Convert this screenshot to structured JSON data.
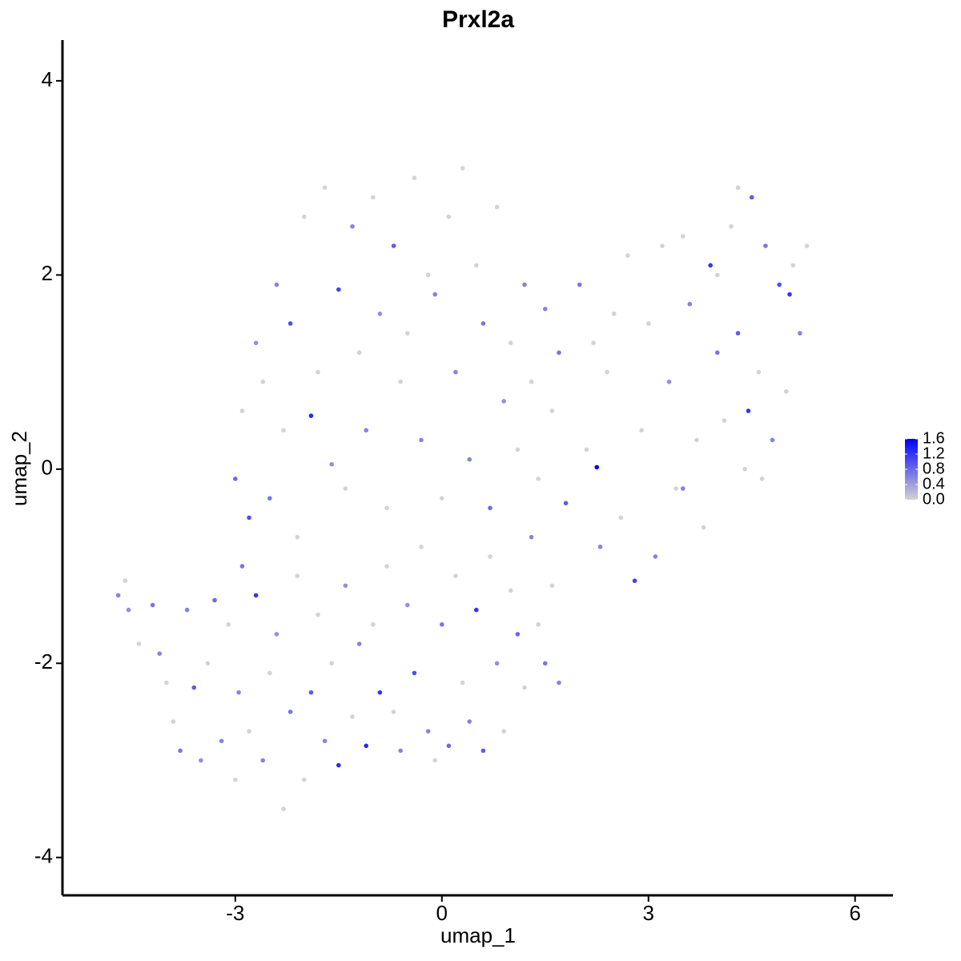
{
  "chart_data": {
    "type": "scatter",
    "title": "Prxl2a",
    "x_label": "umap_1",
    "y_label": "umap_2",
    "xlim": [
      -5.51,
      6.55
    ],
    "ylim": [
      -4.39,
      4.42
    ],
    "xticks": [
      -3,
      0,
      3,
      6
    ],
    "yticks": [
      -4,
      -2,
      0,
      2,
      4
    ],
    "grid": false,
    "low_color": "#d3d3d3",
    "high_color": "#0000ff",
    "colorlim": [
      0,
      1.6
    ],
    "colorticks": [
      {
        "value": 0,
        "label": "0.0"
      },
      {
        "value": 0.4,
        "label": "0.4"
      },
      {
        "value": 0.8,
        "label": "0.8"
      },
      {
        "value": 1.2,
        "label": "1.2"
      },
      {
        "value": 1.6,
        "label": "1.6"
      }
    ],
    "x": [
      -4.7,
      -4.6,
      -4.55,
      -4.4,
      -4.2,
      -4.1,
      -4.0,
      -3.9,
      -3.8,
      -3.7,
      -3.6,
      -3.5,
      -3.4,
      -3.3,
      -3.2,
      -3.1,
      -3.0,
      -2.95,
      -2.9,
      -2.8,
      -2.7,
      -2.6,
      -2.5,
      -2.4,
      -2.3,
      -2.2,
      -2.1,
      -2.0,
      -1.9,
      -1.8,
      -1.7,
      -1.6,
      -1.5,
      -1.4,
      -1.3,
      -1.2,
      -1.1,
      -1.0,
      -0.9,
      -0.8,
      -0.7,
      -0.6,
      -0.5,
      -0.4,
      -0.3,
      -0.2,
      -0.1,
      0.0,
      0.1,
      0.2,
      0.3,
      0.4,
      0.5,
      0.6,
      0.7,
      0.8,
      0.9,
      1.0,
      1.1,
      1.2,
      1.3,
      1.4,
      1.5,
      1.6,
      1.7,
      -3.0,
      -2.9,
      -2.8,
      -2.7,
      -2.6,
      -2.5,
      -2.4,
      -2.3,
      -2.2,
      -2.1,
      -2.0,
      -1.9,
      -1.8,
      -1.7,
      -1.6,
      -1.5,
      -1.4,
      -1.3,
      -1.2,
      -1.1,
      -1.0,
      -0.9,
      -0.8,
      -0.7,
      -0.6,
      -0.5,
      -0.4,
      -0.3,
      -0.2,
      -0.1,
      0.0,
      0.1,
      0.2,
      0.3,
      0.4,
      0.5,
      0.6,
      0.7,
      0.8,
      0.9,
      1.0,
      1.1,
      1.2,
      1.3,
      1.4,
      1.5,
      1.6,
      1.7,
      1.8,
      2.0,
      2.1,
      2.2,
      2.25,
      2.3,
      2.4,
      2.5,
      2.6,
      2.7,
      2.8,
      2.9,
      3.0,
      3.1,
      3.2,
      3.3,
      3.4,
      3.5,
      3.6,
      3.7,
      3.8,
      3.9,
      4.0,
      4.1,
      4.2,
      4.3,
      4.4,
      4.5,
      4.6,
      4.7,
      4.8,
      4.9,
      5.0,
      5.1,
      5.2,
      5.3,
      4.45,
      4.65,
      3.5,
      4.0,
      4.3,
      5.05
    ],
    "y": [
      -1.3,
      -1.15,
      -1.45,
      -1.8,
      -1.4,
      -1.9,
      -2.2,
      -2.6,
      -2.9,
      -1.45,
      -2.25,
      -3.0,
      -2.0,
      -1.35,
      -2.8,
      -1.6,
      -3.2,
      -2.3,
      -1.0,
      -2.7,
      -1.3,
      -3.0,
      -2.1,
      -1.7,
      -3.5,
      -2.5,
      -1.1,
      -3.2,
      -2.3,
      -1.5,
      -2.8,
      -2.0,
      -3.05,
      -1.2,
      -2.55,
      -1.8,
      -2.85,
      -1.6,
      -2.3,
      -1.0,
      -2.5,
      -2.9,
      -1.4,
      -2.1,
      -0.8,
      -2.7,
      -3.0,
      -1.6,
      -2.85,
      -1.1,
      -2.2,
      -2.6,
      -1.45,
      -2.9,
      -0.9,
      -2.0,
      -2.7,
      -1.25,
      -1.7,
      -2.25,
      -0.7,
      -1.6,
      -2.0,
      -1.2,
      -2.2,
      -0.1,
      0.6,
      -0.5,
      1.3,
      0.9,
      -0.3,
      1.9,
      0.4,
      1.5,
      -0.7,
      2.6,
      0.55,
      1.0,
      2.9,
      0.05,
      1.85,
      -0.2,
      2.5,
      1.2,
      0.4,
      2.8,
      1.6,
      -0.4,
      2.3,
      0.9,
      1.4,
      3.0,
      0.3,
      2.0,
      1.8,
      -0.3,
      2.6,
      1.0,
      3.1,
      0.1,
      2.1,
      1.5,
      -0.4,
      2.7,
      0.7,
      1.3,
      0.2,
      1.9,
      0.9,
      -0.1,
      1.65,
      0.6,
      1.2,
      -0.35,
      1.9,
      0.2,
      1.3,
      0.02,
      -0.8,
      1.0,
      1.6,
      -0.5,
      2.2,
      -1.15,
      0.4,
      1.5,
      -0.9,
      2.3,
      0.9,
      -0.2,
      2.4,
      1.7,
      0.3,
      -0.6,
      2.1,
      1.2,
      0.5,
      2.5,
      1.4,
      0.0,
      2.8,
      1.0,
      2.3,
      0.3,
      1.9,
      0.8,
      2.1,
      1.4,
      2.3,
      0.6,
      -0.1,
      -0.2,
      2.0,
      2.9,
      1.8
    ],
    "values": [
      0.6,
      0,
      0.5,
      0,
      0.7,
      0.6,
      0,
      0,
      0.7,
      0.6,
      0.9,
      0.5,
      0,
      0.8,
      0.6,
      0,
      0,
      0.6,
      0.7,
      0,
      1.2,
      0.6,
      0,
      0.5,
      0,
      0.7,
      0,
      0,
      0.9,
      0,
      0.6,
      0,
      1.3,
      0.5,
      0,
      0.6,
      1.3,
      0,
      1.2,
      0,
      0,
      0.6,
      0.5,
      1.0,
      0,
      0.6,
      0,
      0.7,
      0.8,
      0,
      0,
      0.6,
      1.2,
      0.9,
      0,
      0.5,
      0,
      0,
      0.8,
      0,
      0.6,
      0,
      0.7,
      0,
      0.6,
      0.8,
      0,
      1.0,
      0.5,
      0,
      0.7,
      0.6,
      0,
      1.0,
      0,
      0,
      1.3,
      0,
      0,
      0.5,
      1.1,
      0,
      0.6,
      0,
      0.6,
      0,
      0.5,
      0,
      0.9,
      0,
      0,
      0,
      0.6,
      0,
      0.6,
      0,
      0,
      0.6,
      0,
      0.6,
      0,
      0.7,
      0.8,
      0,
      0.5,
      0,
      0,
      0.6,
      0,
      0,
      0.6,
      0,
      0.7,
      0.9,
      0.7,
      0,
      0,
      1.6,
      0.6,
      0,
      0,
      0,
      0,
      1.1,
      0,
      0,
      0.6,
      0,
      0.5,
      0,
      0,
      0.6,
      0,
      0,
      1.2,
      0.7,
      0,
      0,
      0.9,
      0,
      0.9,
      0,
      0.7,
      0.6,
      1.0,
      0,
      0,
      0.6,
      0,
      1.2,
      0,
      0.6,
      0,
      0,
      1.2
    ]
  }
}
